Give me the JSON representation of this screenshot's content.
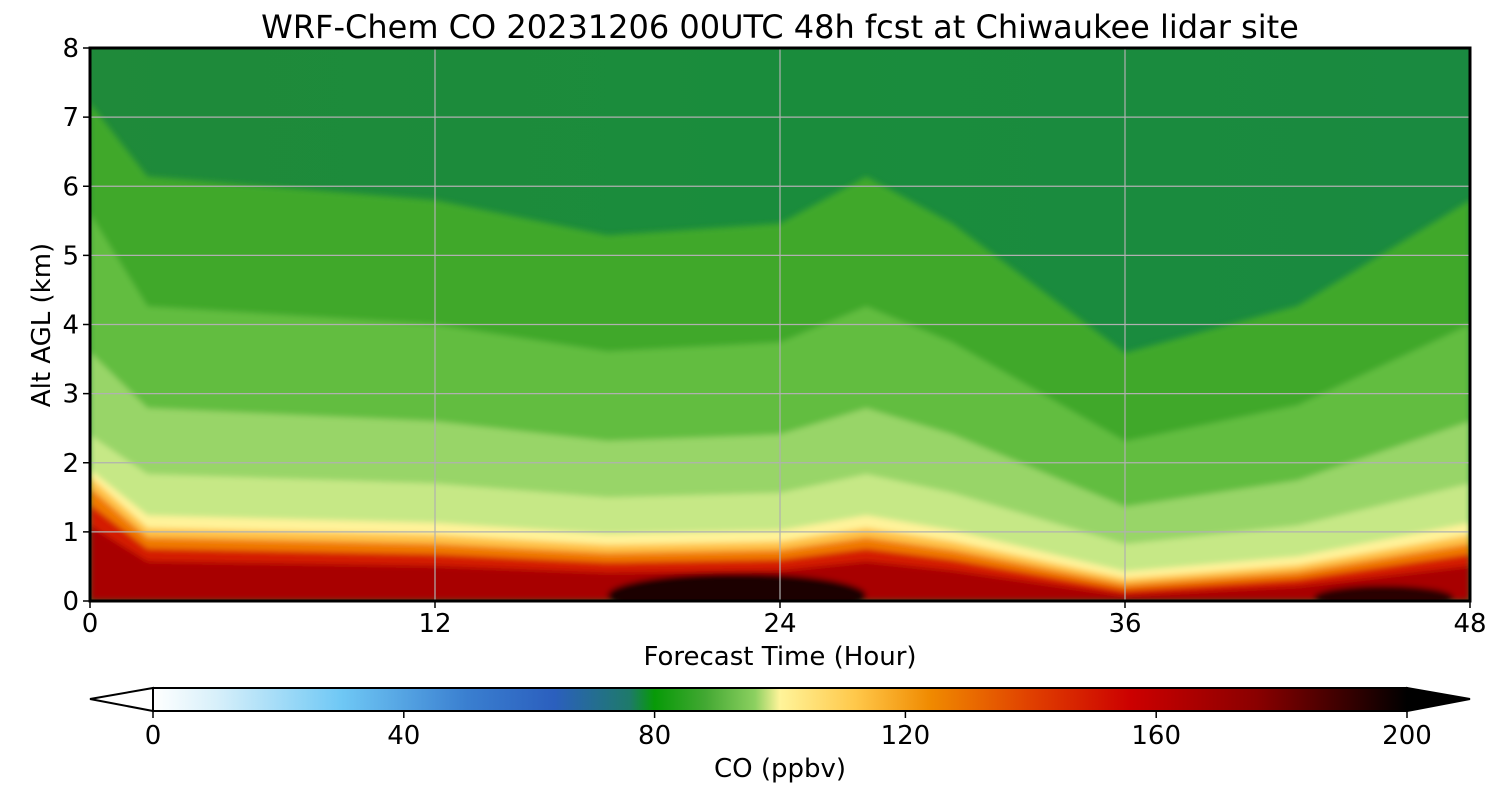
{
  "chart_data": {
    "type": "heatmap",
    "title": "WRF-Chem CO  20231206 00UTC 48h fcst at Chiwaukee lidar site",
    "xlabel": "Forecast Time (Hour)",
    "ylabel": "Alt AGL (km)",
    "xlim": [
      0,
      48
    ],
    "ylim": [
      0,
      8
    ],
    "xticks": [
      "0",
      "12",
      "24",
      "36",
      "48"
    ],
    "yticks": [
      "0",
      "1",
      "2",
      "3",
      "4",
      "5",
      "6",
      "7",
      "8"
    ],
    "grid": true,
    "variable": "CO",
    "units": "ppbv",
    "colorbar": {
      "label": "CO  (ppbv)",
      "min": 0,
      "max": 200,
      "ticks": [
        "0",
        "40",
        "80",
        "120",
        "160",
        "200"
      ],
      "extend": "both",
      "colors": [
        "#ffffff",
        "#d8f0fa",
        "#6fc8f5",
        "#3a7fd0",
        "#2b5fbe",
        "#1e7a6a",
        "#079a07",
        "#42a832",
        "#8cd060",
        "#c8e888",
        "#fff49a",
        "#ffc84a",
        "#f08a00",
        "#e04000",
        "#cc0000",
        "#a00000",
        "#5a0000",
        "#000000"
      ]
    },
    "boundary_layer_top_km": [
      {
        "x": 0,
        "y": 1.9
      },
      {
        "x": 2,
        "y": 1.1
      },
      {
        "x": 12,
        "y": 1.0
      },
      {
        "x": 18,
        "y": 0.85
      },
      {
        "x": 24,
        "y": 0.9
      },
      {
        "x": 27,
        "y": 1.1
      },
      {
        "x": 30,
        "y": 0.9
      },
      {
        "x": 36,
        "y": 0.35
      },
      {
        "x": 42,
        "y": 0.55
      },
      {
        "x": 48,
        "y": 1.0
      }
    ],
    "core_max_region_x": [
      18,
      27
    ]
  }
}
